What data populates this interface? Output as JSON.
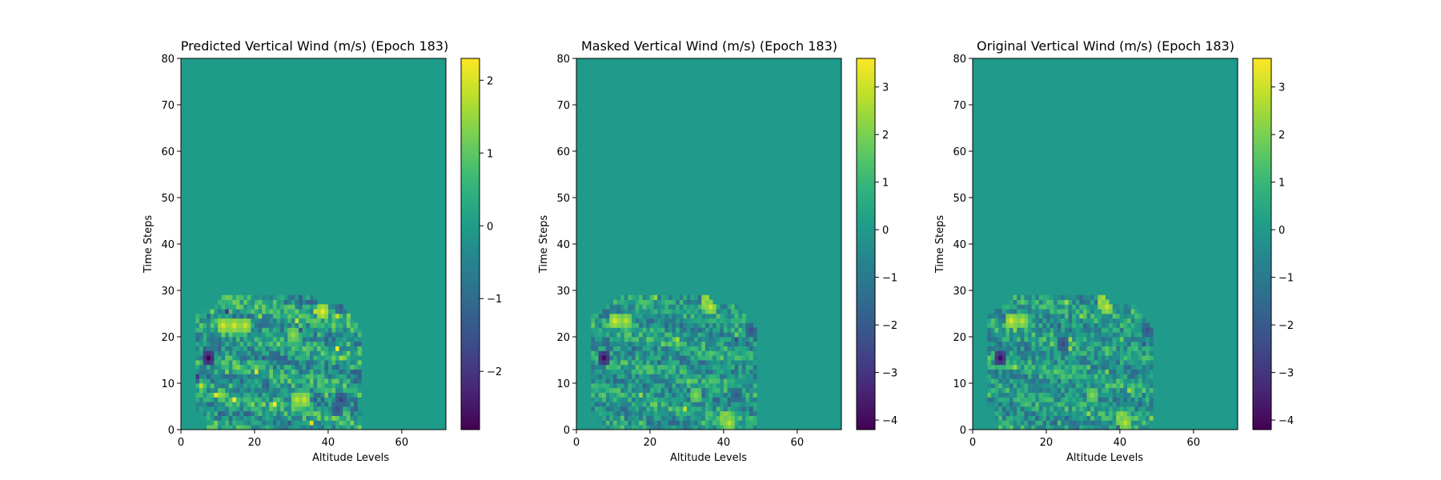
{
  "chart_data": [
    {
      "type": "heatmap",
      "title": "Predicted Vertical Wind (m/s) (Epoch 183)",
      "xlabel": "Altitude Levels",
      "ylabel": "Time Steps",
      "xlim": [
        0,
        72
      ],
      "ylim": [
        0,
        80
      ],
      "xticks": [
        0,
        20,
        40,
        60
      ],
      "yticks": [
        0,
        10,
        20,
        30,
        40,
        50,
        60,
        70,
        80
      ],
      "colormap": "viridis",
      "colorbar": {
        "min": -2.8,
        "max": 2.3,
        "ticks": [
          -2,
          -1,
          0,
          1,
          2
        ]
      },
      "data_region": {
        "altitude_range": [
          4,
          49
        ],
        "time_range": [
          0,
          29
        ]
      },
      "hotspots": [
        {
          "x": 11,
          "y": 22,
          "value": 2.0
        },
        {
          "x": 14,
          "y": 22,
          "value": 2.0
        },
        {
          "x": 17,
          "y": 22,
          "value": 1.9
        },
        {
          "x": 38,
          "y": 25,
          "value": 2.2
        },
        {
          "x": 31,
          "y": 6,
          "value": 1.8
        },
        {
          "x": 33,
          "y": 6,
          "value": 1.9
        },
        {
          "x": 30,
          "y": 20,
          "value": 1.5
        },
        {
          "x": 7,
          "y": 15,
          "value": -2.8
        },
        {
          "x": 43,
          "y": 6,
          "value": -1.8
        },
        {
          "x": 42,
          "y": 4,
          "value": -1.6
        }
      ]
    },
    {
      "type": "heatmap",
      "title": "Masked Vertical Wind (m/s) (Epoch 183)",
      "xlabel": "Altitude Levels",
      "ylabel": "Time Steps",
      "xlim": [
        0,
        72
      ],
      "ylim": [
        0,
        80
      ],
      "xticks": [
        0,
        20,
        40,
        60
      ],
      "yticks": [
        0,
        10,
        20,
        30,
        40,
        50,
        60,
        70,
        80
      ],
      "colormap": "viridis",
      "colorbar": {
        "min": -4.2,
        "max": 3.6,
        "ticks": [
          -4,
          -3,
          -2,
          -1,
          0,
          1,
          2,
          3
        ]
      },
      "data_region": {
        "altitude_range": [
          4,
          49
        ],
        "time_range": [
          0,
          29
        ]
      },
      "hotspots": [
        {
          "x": 10,
          "y": 23,
          "value": 3.2
        },
        {
          "x": 13,
          "y": 23,
          "value": 2.8
        },
        {
          "x": 35,
          "y": 27,
          "value": 3.3
        },
        {
          "x": 36,
          "y": 26,
          "value": 3.0
        },
        {
          "x": 40,
          "y": 2,
          "value": 3.0
        },
        {
          "x": 41,
          "y": 1,
          "value": 2.8
        },
        {
          "x": 32,
          "y": 7,
          "value": 2.2
        },
        {
          "x": 7,
          "y": 15,
          "value": -4.0
        },
        {
          "x": 47,
          "y": 21,
          "value": -2.2
        },
        {
          "x": 43,
          "y": 7,
          "value": -2.0
        }
      ]
    },
    {
      "type": "heatmap",
      "title": "Original Vertical Wind (m/s) (Epoch 183)",
      "xlabel": "Altitude Levels",
      "ylabel": "Time Steps",
      "xlim": [
        0,
        72
      ],
      "ylim": [
        0,
        80
      ],
      "xticks": [
        0,
        20,
        40,
        60
      ],
      "yticks": [
        0,
        10,
        20,
        30,
        40,
        50,
        60,
        70,
        80
      ],
      "colormap": "viridis",
      "colorbar": {
        "min": -4.2,
        "max": 3.6,
        "ticks": [
          -4,
          -3,
          -2,
          -1,
          0,
          1,
          2,
          3
        ]
      },
      "data_region": {
        "altitude_range": [
          4,
          49
        ],
        "time_range": [
          0,
          29
        ]
      },
      "hotspots": [
        {
          "x": 10,
          "y": 23,
          "value": 3.2
        },
        {
          "x": 13,
          "y": 23,
          "value": 2.8
        },
        {
          "x": 35,
          "y": 27,
          "value": 3.3
        },
        {
          "x": 36,
          "y": 26,
          "value": 3.0
        },
        {
          "x": 40,
          "y": 2,
          "value": 3.0
        },
        {
          "x": 41,
          "y": 1,
          "value": 2.8
        },
        {
          "x": 32,
          "y": 7,
          "value": 2.2
        },
        {
          "x": 7,
          "y": 15,
          "value": -4.0
        },
        {
          "x": 24,
          "y": 18,
          "value": -2.5
        },
        {
          "x": 47,
          "y": 21,
          "value": -2.2
        }
      ]
    }
  ]
}
